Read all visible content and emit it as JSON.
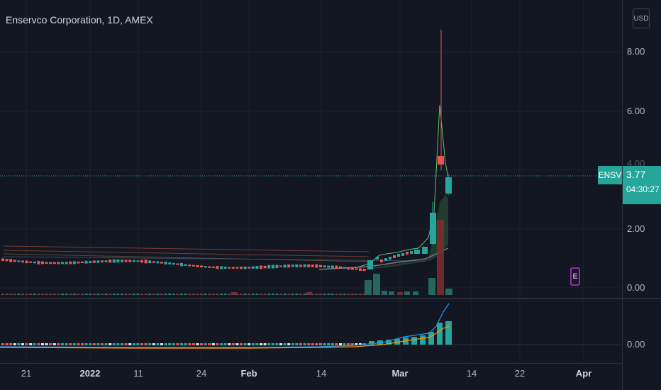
{
  "header": {
    "title": "Enservco Corporation, 1D, AMEX"
  },
  "price_axis": {
    "currency": "USD",
    "ticks": [
      "8.00",
      "6.00",
      "4.00",
      "2.00",
      "0.00"
    ],
    "indicator_ticks": [
      "0.00"
    ]
  },
  "time_axis": {
    "ticks": [
      "21",
      "2022",
      "11",
      "24",
      "Feb",
      "14",
      "Mar",
      "14",
      "22",
      "Apr"
    ]
  },
  "last_price": {
    "symbol": "ENSV",
    "value": "3.77",
    "countdown": "04:30:27"
  },
  "earnings_marker": {
    "label": "E"
  },
  "colors": {
    "background": "#131722",
    "up": "#26a69a",
    "down": "#ef5350",
    "ma_fast": "#2196f3",
    "ma_slow": "#ff9800"
  },
  "chart_data": {
    "type": "candlestick",
    "symbol": "ENSV",
    "interval": "1D",
    "ylim": [
      0,
      9
    ],
    "last_price": 3.77,
    "notable_candles": [
      {
        "date": "Mar 9",
        "open": 1.9,
        "high": 8.7,
        "low": 1.6,
        "close": 4.7
      },
      {
        "date": "Mar 10",
        "open": 3.8,
        "high": 3.9,
        "low": 3.2,
        "close": 3.77
      }
    ]
  }
}
